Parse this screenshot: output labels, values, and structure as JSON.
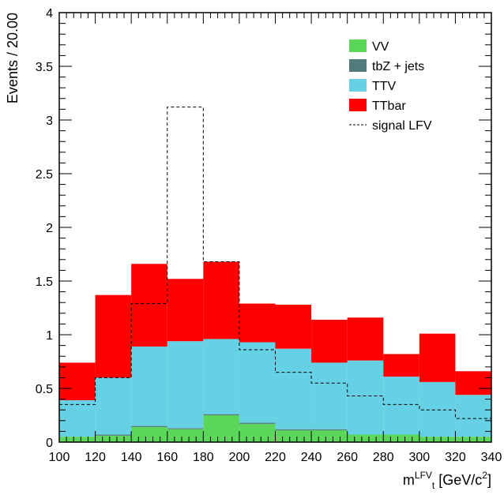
{
  "chart_data": {
    "type": "bar",
    "stacked": true,
    "x_edges": [
      100,
      120,
      140,
      160,
      180,
      200,
      220,
      240,
      260,
      280,
      300,
      320,
      340
    ],
    "xlim": [
      100,
      340
    ],
    "ylim": [
      0,
      4
    ],
    "ylabel": "Events / 20.00",
    "xlabel": {
      "base": "m",
      "sup": "LFV",
      "sub": "t",
      "unit": " [GeV/c",
      "unit_sup": "2",
      "unit_end": "]"
    },
    "x_ticks": [
      "100",
      "120",
      "140",
      "160",
      "180",
      "200",
      "220",
      "240",
      "260",
      "280",
      "300",
      "320",
      "340"
    ],
    "y_ticks": [
      {
        "value": 0,
        "label": "0"
      },
      {
        "value": 0.5,
        "label": "0.5"
      },
      {
        "value": 1,
        "label": "1"
      },
      {
        "value": 1.5,
        "label": "1.5"
      },
      {
        "value": 2,
        "label": "2"
      },
      {
        "value": 2.5,
        "label": "2.5"
      },
      {
        "value": 3,
        "label": "3"
      },
      {
        "value": 3.5,
        "label": "3.5"
      },
      {
        "value": 4,
        "label": "4"
      }
    ],
    "series": [
      {
        "name": "VV",
        "color": "#5ad75a",
        "values": [
          0.05,
          0.06,
          0.14,
          0.12,
          0.25,
          0.17,
          0.11,
          0.11,
          0.07,
          0.07,
          0.05,
          0.05
        ]
      },
      {
        "name": "tbZ + jets",
        "color": "#537a7a",
        "values": [
          0.0,
          0.01,
          0.01,
          0.01,
          0.01,
          0.01,
          0.01,
          0.01,
          0.0,
          0.0,
          0.0,
          0.0
        ]
      },
      {
        "name": "TTV",
        "color": "#66d0e4",
        "values": [
          0.34,
          0.53,
          0.74,
          0.81,
          0.7,
          0.75,
          0.75,
          0.62,
          0.69,
          0.54,
          0.51,
          0.39
        ]
      },
      {
        "name": "TTbar",
        "color": "#ff0000",
        "values": [
          0.35,
          0.77,
          0.77,
          0.58,
          0.72,
          0.36,
          0.41,
          0.4,
          0.4,
          0.21,
          0.45,
          0.22
        ]
      }
    ],
    "signal": {
      "name": "signal LFV",
      "style": "dashed",
      "values": [
        0.35,
        0.6,
        1.29,
        3.12,
        1.68,
        0.86,
        0.65,
        0.55,
        0.43,
        0.35,
        0.3,
        0.22
      ]
    },
    "legend_position": "top-right",
    "grid": false
  }
}
